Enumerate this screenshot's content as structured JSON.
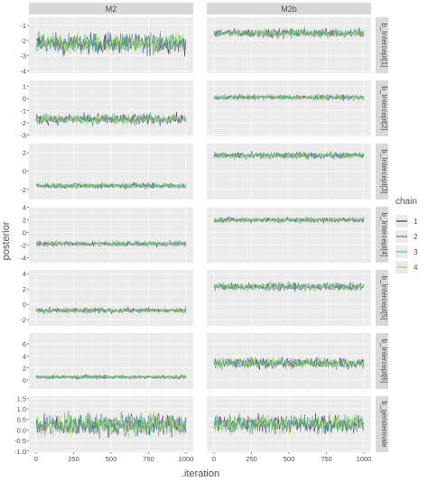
{
  "chart_data": {
    "type": "line",
    "ylabel": "posterior",
    "xlabel": ".iteration",
    "legend": {
      "title": "chain",
      "entries": [
        "1",
        "2",
        "3",
        "4"
      ],
      "position": "right"
    },
    "colors": {
      "chain_1": "#440154",
      "chain_2": "#31688e",
      "chain_3": "#35b779",
      "chain_4": "#90d743",
      "panel_bg": "#ebebeb",
      "grid": "#ffffff",
      "strip_bg": "#d9d9d9"
    },
    "grid": true,
    "x_range": [
      0,
      1000
    ],
    "x_ticks": [
      "0",
      "250",
      "500",
      "750",
      "1000"
    ],
    "columns": [
      "M2",
      "M2b"
    ],
    "rows": [
      {
        "label": "b_Intercept[1]",
        "ylim": [
          -4.15,
          -0.45
        ],
        "yticks": [
          "-1",
          "-2",
          "-3",
          "-4"
        ],
        "tick_values": [
          -1,
          -2,
          -3,
          -4
        ],
        "M2": {
          "mean": -2.2,
          "spread": 0.45
        },
        "M2b": {
          "mean": -1.5,
          "spread": 0.2
        }
      },
      {
        "label": "b_Intercept[2]",
        "ylim": [
          -3.1,
          1.5
        ],
        "yticks": [
          "1",
          "0",
          "-1",
          "-2",
          "-3"
        ],
        "tick_values": [
          1,
          0,
          -1,
          -2,
          -3
        ],
        "M2": {
          "mean": -1.7,
          "spread": 0.3
        },
        "M2b": {
          "mean": 0.1,
          "spread": 0.15
        }
      },
      {
        "label": "b_Intercept[3]",
        "ylim": [
          -3.1,
          3.0
        ],
        "yticks": [
          "2",
          "0",
          "-2"
        ],
        "tick_values": [
          2,
          0,
          -2
        ],
        "M2": {
          "mean": -1.6,
          "spread": 0.22
        },
        "M2b": {
          "mean": 1.7,
          "spread": 0.25
        }
      },
      {
        "label": "b_Intercept[4]",
        "ylim": [
          -4.8,
          4.1
        ],
        "yticks": [
          "4",
          "2",
          "0",
          "-2",
          "-4"
        ],
        "tick_values": [
          4,
          2,
          0,
          -2,
          -4
        ],
        "M2": {
          "mean": -1.8,
          "spread": 0.3
        },
        "M2b": {
          "mean": 2.0,
          "spread": 0.3
        }
      },
      {
        "label": "b_Intercept[5]",
        "ylim": [
          -2.8,
          4.5
        ],
        "yticks": [
          "4",
          "2",
          "0",
          "-2"
        ],
        "tick_values": [
          4,
          2,
          0,
          -2
        ],
        "M2": {
          "mean": -0.8,
          "spread": 0.25
        },
        "M2b": {
          "mean": 2.3,
          "spread": 0.35
        }
      },
      {
        "label": "b_Intercept[6]",
        "ylim": [
          -1.5,
          7.8
        ],
        "yticks": [
          "6",
          "4",
          "2",
          "0"
        ],
        "tick_values": [
          6,
          4,
          2,
          0
        ],
        "M2": {
          "mean": 0.5,
          "spread": 0.25
        },
        "M2b": {
          "mean": 2.8,
          "spread": 0.6
        }
      },
      {
        "label": "b_gendermale",
        "ylim": [
          -1.05,
          1.6
        ],
        "yticks": [
          "1.5",
          "1.0",
          "0.5",
          "0.0",
          "-0.5",
          "-1.0"
        ],
        "tick_values": [
          1.5,
          1.0,
          0.5,
          0.0,
          -0.5,
          -1.0
        ],
        "M2": {
          "mean": 0.25,
          "spread": 0.35
        },
        "M2b": {
          "mean": 0.3,
          "spread": 0.3
        }
      }
    ]
  }
}
